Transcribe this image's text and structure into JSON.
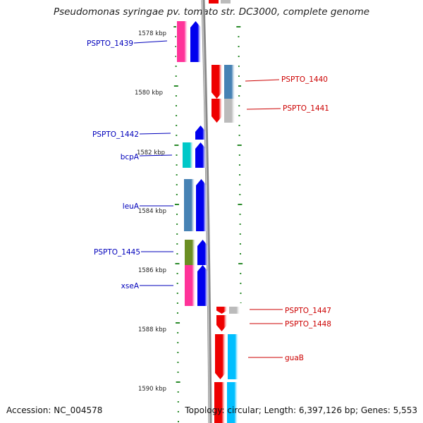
{
  "title": "Pseudomonas syringae pv. tomato str. DC3000, complete genome",
  "accession": "Accession: NC_004578",
  "topology": "Topology: circular; Length: 6,397,126 bp; Genes: 5,553",
  "colors": {
    "left_label": "#0000bb",
    "right_label": "#cc0000",
    "tick": "#2a8a2a",
    "backbone": "#888888"
  },
  "scale_labels": [
    "1578 kbp",
    "1580 kbp",
    "1582 kbp",
    "1584 kbp",
    "1586 kbp",
    "1588 kbp",
    "1590 kbp"
  ],
  "genes": [
    {
      "label": "PSPTO_1439",
      "strand": "forward",
      "colors": [
        "#ff3399",
        "#0000ee"
      ]
    },
    {
      "label": "PSPTO_1440",
      "strand": "reverse",
      "colors": [
        "#ee0000",
        "#4682b4"
      ]
    },
    {
      "label": "PSPTO_1441",
      "strand": "reverse",
      "colors": [
        "#ee0000",
        "#bbbbbb"
      ]
    },
    {
      "label": "PSPTO_1442",
      "strand": "forward",
      "colors": [
        "#0000ee"
      ]
    },
    {
      "label": "bcpA",
      "strand": "forward",
      "colors": [
        "#00c8c8",
        "#0000ee"
      ]
    },
    {
      "label": "leuA",
      "strand": "forward",
      "colors": [
        "#4682b4",
        "#0000ee"
      ]
    },
    {
      "label": "PSPTO_1445",
      "strand": "forward",
      "colors": [
        "#6b8e23",
        "#0000ee"
      ]
    },
    {
      "label": "xseA",
      "strand": "forward",
      "colors": [
        "#ff3399",
        "#0000ee"
      ]
    },
    {
      "label": "PSPTO_1447",
      "strand": "reverse",
      "colors": [
        "#ee0000",
        "#bbbbbb"
      ]
    },
    {
      "label": "PSPTO_1448",
      "strand": "reverse",
      "colors": [
        "#ee0000"
      ]
    },
    {
      "label": "guaB",
      "strand": "reverse",
      "colors": [
        "#ee0000",
        "#00bfff"
      ]
    }
  ]
}
